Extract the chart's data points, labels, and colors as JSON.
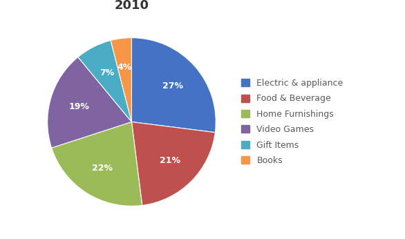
{
  "title": "2010",
  "labels": [
    "Electric & appliance",
    "Food & Beverage",
    "Home Furnishings",
    "Video Games",
    "Gift Items",
    "Books"
  ],
  "values": [
    27,
    21,
    22,
    19,
    7,
    4
  ],
  "colors": [
    "#4472C4",
    "#C0504D",
    "#9BBB59",
    "#8064A2",
    "#4BACC6",
    "#F79646"
  ],
  "legend_labels": [
    "Electric & appliance",
    "Food & Beverage",
    "Home Furnishings",
    "Video Games",
    "Gift Items",
    "Books"
  ],
  "title_fontsize": 13,
  "label_fontsize": 9,
  "legend_fontsize": 9,
  "startangle": 90,
  "pct_labels": [
    "27%",
    "21%",
    "22%",
    "19%",
    "7%",
    "4%"
  ]
}
